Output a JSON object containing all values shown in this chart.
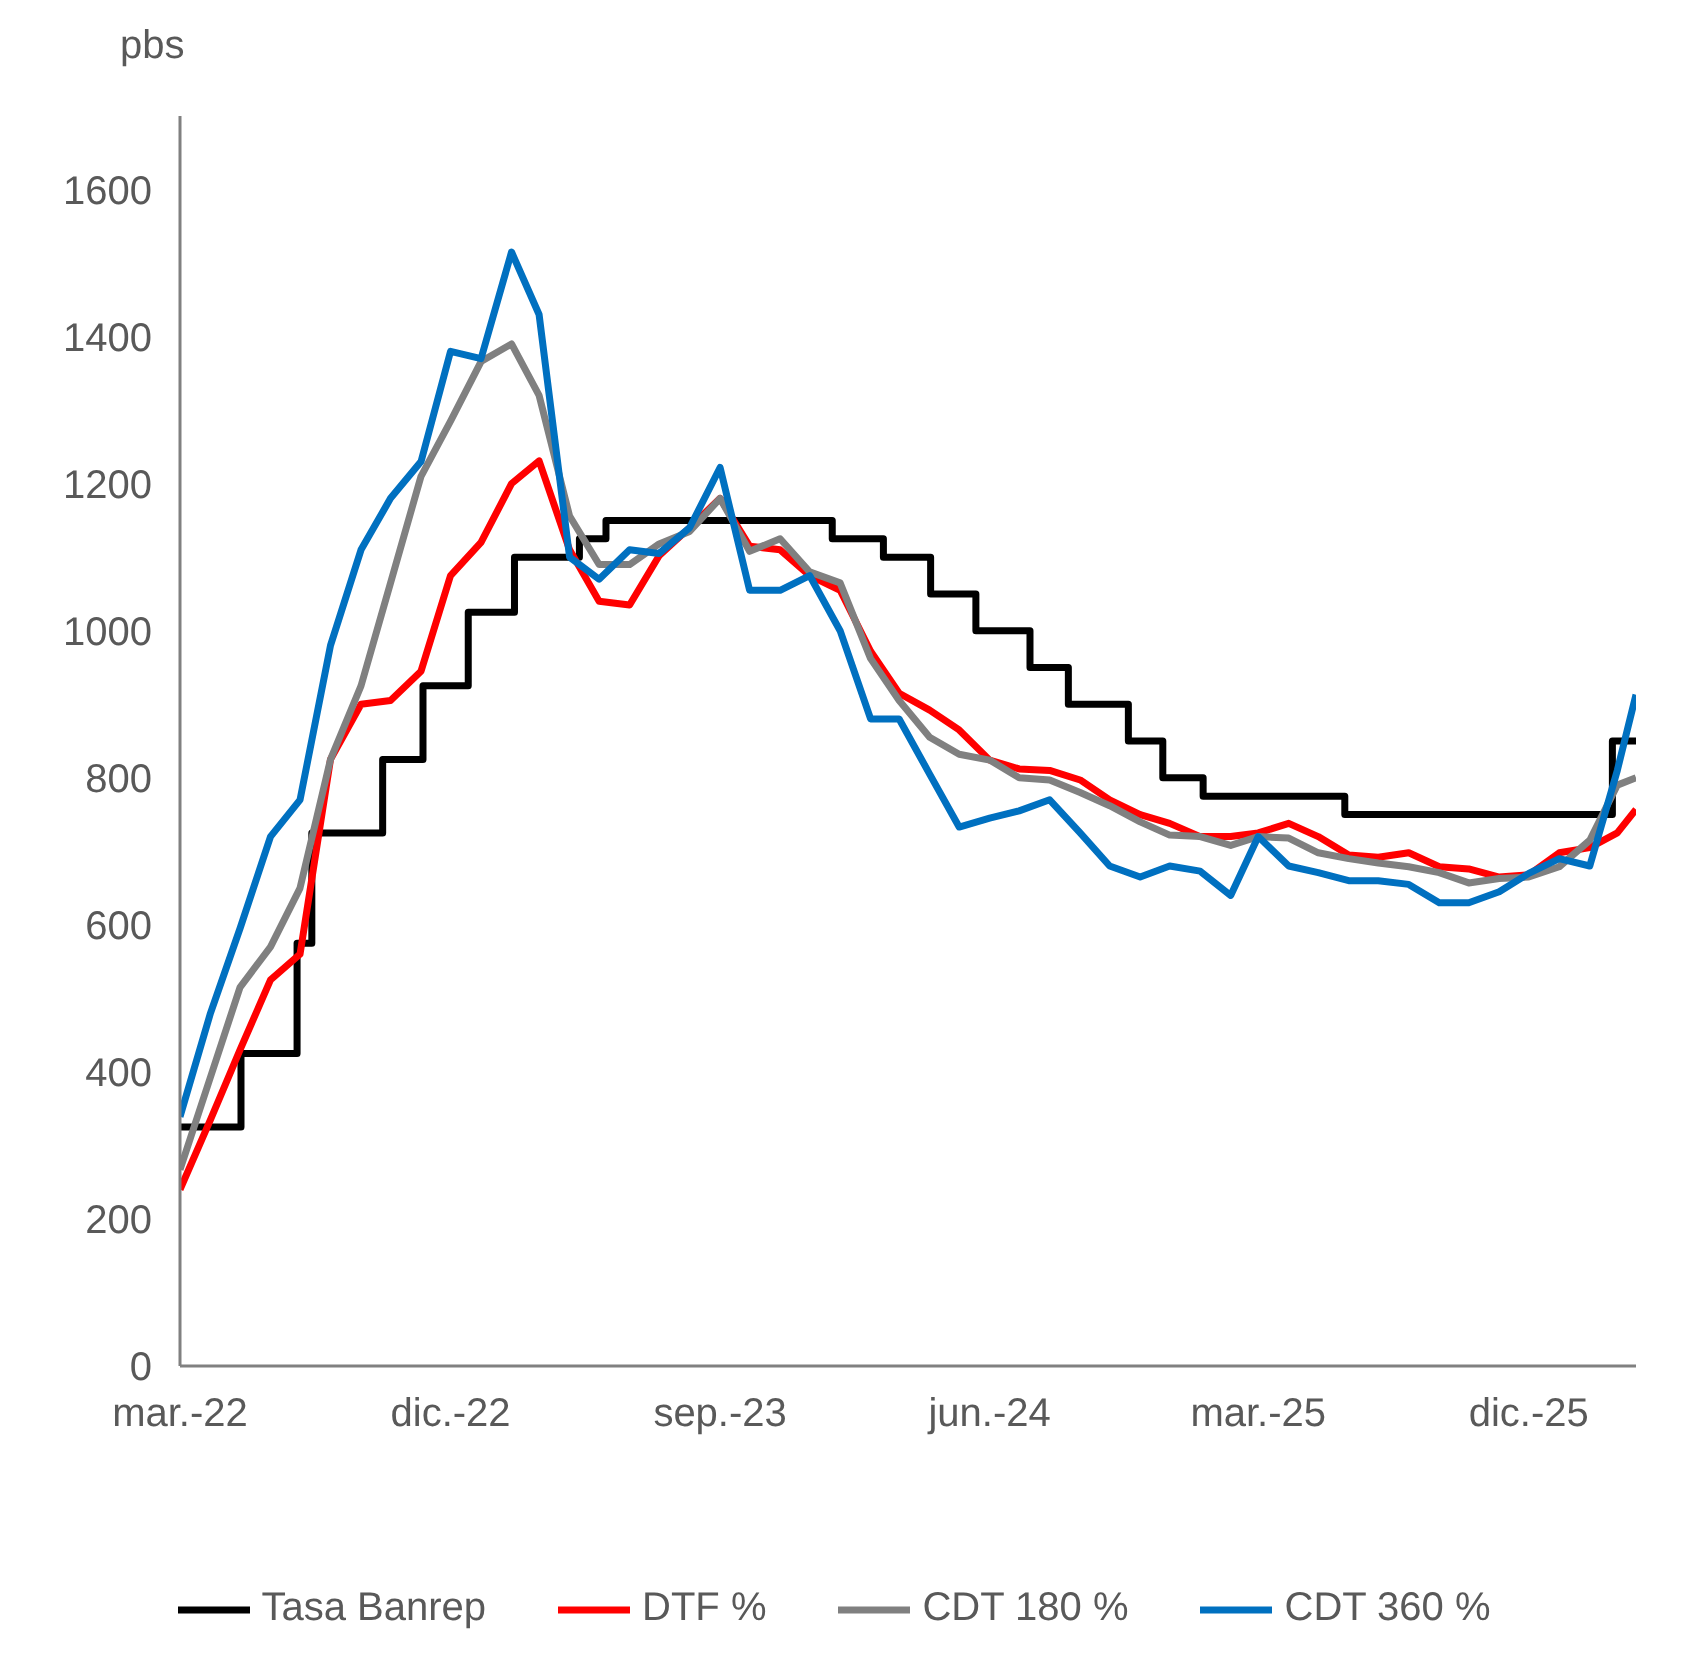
{
  "chart_data": {
    "type": "line",
    "ylabel": "pbs",
    "x": [
      "2022-03-01",
      "2022-04-01",
      "2022-05-01",
      "2022-06-01",
      "2022-07-01",
      "2022-08-01",
      "2022-09-01",
      "2022-10-01",
      "2022-11-01",
      "2022-12-01",
      "2023-01-01",
      "2023-02-01",
      "2023-03-01",
      "2023-04-01",
      "2023-05-01",
      "2023-06-01",
      "2023-07-01",
      "2023-08-01",
      "2023-09-01",
      "2023-10-01",
      "2023-11-01",
      "2023-12-01",
      "2024-01-01",
      "2024-02-01",
      "2024-03-01",
      "2024-04-01",
      "2024-05-01",
      "2024-06-01",
      "2024-07-01",
      "2024-08-01",
      "2024-09-01",
      "2024-10-01",
      "2024-11-01",
      "2024-12-01",
      "2025-01-01",
      "2025-02-01",
      "2025-03-01",
      "2025-04-01",
      "2025-05-01",
      "2025-06-01",
      "2025-07-01",
      "2025-08-01",
      "2025-09-01",
      "2025-10-01",
      "2025-11-01",
      "2025-12-01",
      "2026-01-01",
      "2026-02-01",
      "2026-03-01",
      "2026-03-20"
    ],
    "series": [
      {
        "name": "Tasa Banrep",
        "type": "step",
        "color": "#000000",
        "x": [
          "2022-03-01",
          "2022-05-02",
          "2022-06-28",
          "2022-07-13",
          "2022-09-23",
          "2022-11-03",
          "2022-12-19",
          "2023-02-04",
          "2023-04-11",
          "2023-05-08",
          "2023-12-24",
          "2024-02-14",
          "2024-04-02",
          "2024-05-18",
          "2024-07-12",
          "2024-08-20",
          "2024-10-20",
          "2024-11-24",
          "2025-01-04",
          "2025-05-28",
          "2026-02-24",
          "2026-03-20"
        ],
        "values": [
          325,
          425,
          575,
          725,
          825,
          925,
          1025,
          1100,
          1125,
          1150,
          1125,
          1100,
          1050,
          1000,
          950,
          900,
          850,
          800,
          775,
          750,
          850,
          850
        ]
      },
      {
        "name": "DTF %",
        "color": "#ff0000",
        "values": [
          240,
          335,
          430,
          525,
          560,
          825,
          900,
          905,
          945,
          1075,
          1120,
          1200,
          1231,
          1110,
          1040,
          1035,
          1102,
          1140,
          1180,
          1115,
          1110,
          1075,
          1055,
          972,
          915,
          892,
          865,
          824,
          812,
          810,
          797,
          770,
          750,
          738,
          720,
          720,
          725,
          738,
          720,
          695,
          692,
          698,
          679,
          676,
          665,
          668,
          698,
          705,
          725,
          757
        ]
      },
      {
        "name": "CDT 180 %",
        "color": "#808080",
        "values": [
          267,
          393,
          515,
          570,
          650,
          825,
          925,
          1065,
          1210,
          1285,
          1366,
          1390,
          1320,
          1156,
          1090,
          1090,
          1118,
          1135,
          1180,
          1108,
          1125,
          1080,
          1065,
          962,
          905,
          855,
          832,
          824,
          800,
          797,
          780,
          762,
          740,
          722,
          720,
          708,
          720,
          718,
          698,
          690,
          684,
          679,
          671,
          657,
          663,
          665,
          679,
          715,
          790,
          800
        ]
      },
      {
        "name": "CDT 360 %",
        "color": "#0070c0",
        "values": [
          339,
          480,
          595,
          720,
          770,
          980,
          1110,
          1180,
          1230,
          1380,
          1370,
          1515,
          1430,
          1100,
          1070,
          1110,
          1105,
          1140,
          1222,
          1055,
          1055,
          1075,
          1000,
          880,
          880,
          805,
          733,
          745,
          755,
          770,
          725,
          680,
          665,
          680,
          673,
          640,
          720,
          680,
          671,
          660,
          660,
          655,
          630,
          630,
          645,
          670,
          690,
          680,
          810,
          913
        ]
      }
    ],
    "xlim": [
      "2022-03-01",
      "2026-03-20"
    ],
    "xticks": [
      {
        "value": "2022-03-01",
        "label": "mar.-22"
      },
      {
        "value": "2022-12-01",
        "label": "dic.-22"
      },
      {
        "value": "2023-09-01",
        "label": "sep.-23"
      },
      {
        "value": "2024-06-01",
        "label": "jun.-24"
      },
      {
        "value": "2025-03-01",
        "label": "mar.-25"
      },
      {
        "value": "2025-12-01",
        "label": "dic.-25"
      }
    ],
    "ylim": [
      0,
      1700
    ],
    "yticks": [
      0,
      200,
      400,
      600,
      800,
      1000,
      1200,
      1400,
      1600
    ],
    "grid": false,
    "legend": "bottom",
    "marker": "none",
    "line_style": "solid"
  }
}
